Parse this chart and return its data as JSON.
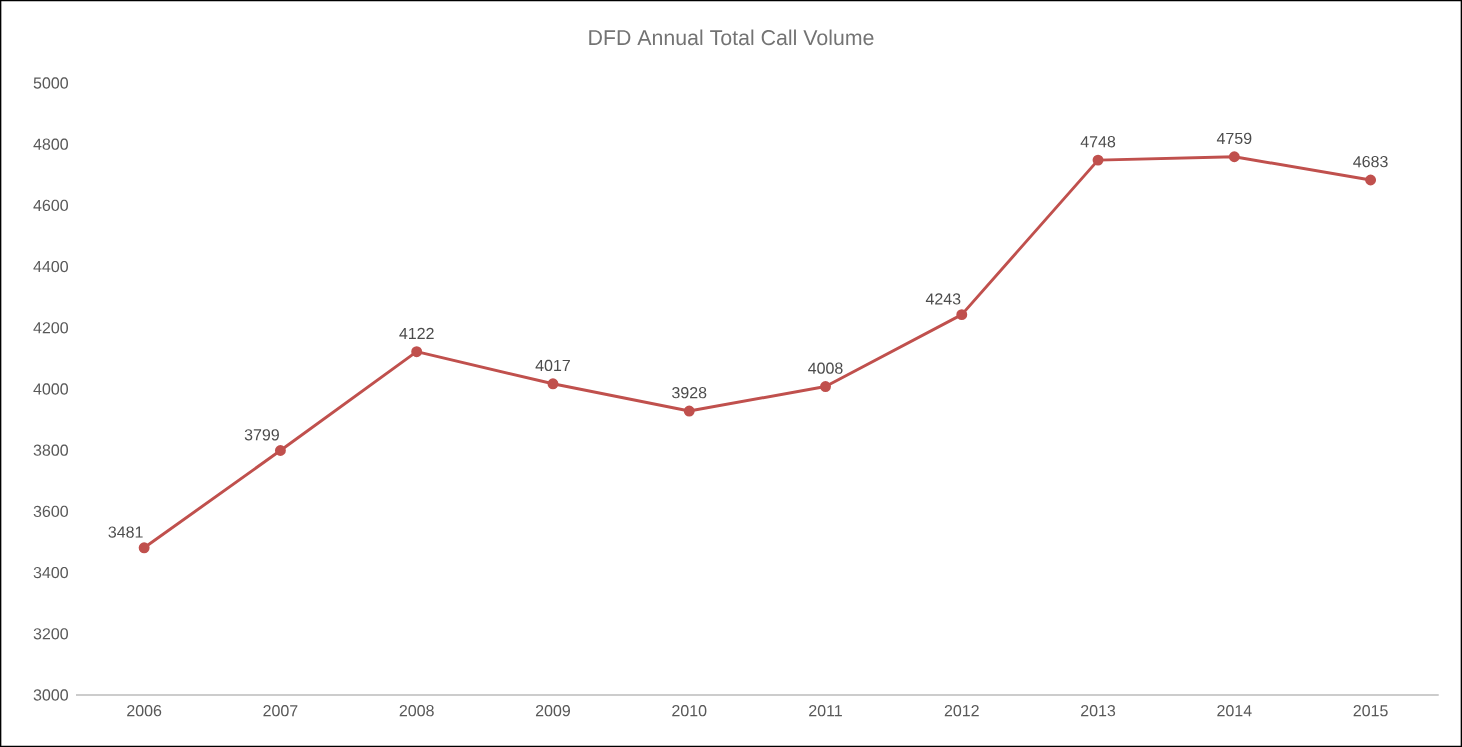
{
  "chart_data": {
    "type": "line",
    "title": "DFD Annual Total Call Volume",
    "categories": [
      "2006",
      "2007",
      "2008",
      "2009",
      "2010",
      "2011",
      "2012",
      "2013",
      "2014",
      "2015"
    ],
    "values": [
      3481,
      3799,
      4122,
      4017,
      3928,
      4008,
      4243,
      4748,
      4759,
      4683
    ],
    "color": "#c0504d",
    "marker": "circle",
    "line_style": "solid",
    "data_labels": true,
    "grid": false,
    "ylim": [
      3000,
      5000
    ],
    "yticks": [
      3000,
      3200,
      3400,
      3600,
      3800,
      4000,
      4200,
      4400,
      4600,
      4800,
      5000
    ]
  }
}
